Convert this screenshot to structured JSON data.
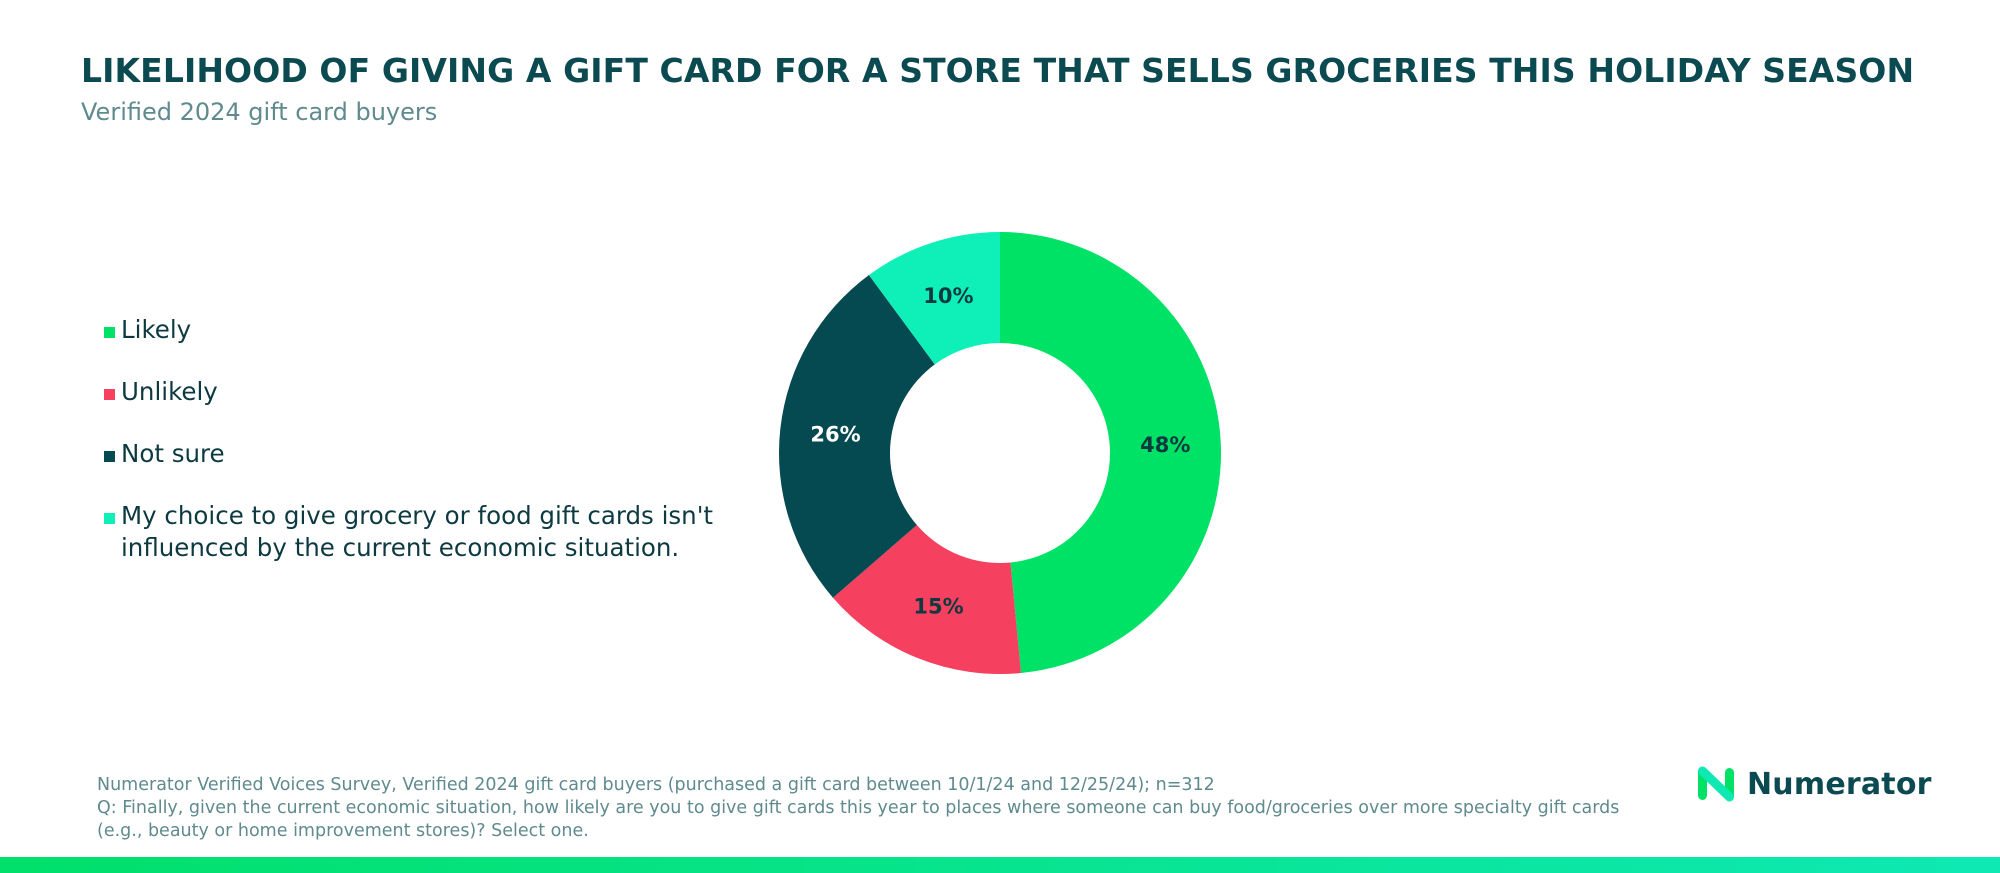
{
  "header": {
    "title": "LIKELIHOOD OF GIVING A GIFT CARD FOR A STORE THAT SELLS GROCERIES THIS HOLIDAY SEASON",
    "subtitle": "Verified 2024 gift card buyers"
  },
  "chart_data": {
    "type": "pie",
    "donut": true,
    "legend_position": "left",
    "categories": [
      "Likely",
      "Unlikely",
      "Not sure",
      "My choice to give grocery or food gift cards isn't\ninfluenced by the current economic situation."
    ],
    "values": [
      48,
      15,
      26,
      10
    ],
    "labels": [
      "48%",
      "15%",
      "26%",
      "10%"
    ],
    "colors": [
      "#00e266",
      "#f5405f",
      "#064a51",
      "#0ff0b8"
    ],
    "label_colors": [
      "#0d3a40",
      "#0d3a40",
      "#ffffff",
      "#0d3a40"
    ]
  },
  "footer": {
    "source": "Numerator Verified Voices Survey, Verified 2024 gift card buyers (purchased a gift card between 10/1/24 and 12/25/24); n=312",
    "question": "Q: Finally, given the current economic situation, how likely are you to give gift cards this year to places where someone can buy food/groceries over more specialty gift cards (e.g., beauty or home improvement stores)? Select one."
  },
  "brand": {
    "name": "Numerator",
    "logo_icon": "numerator-n-logo-icon"
  }
}
